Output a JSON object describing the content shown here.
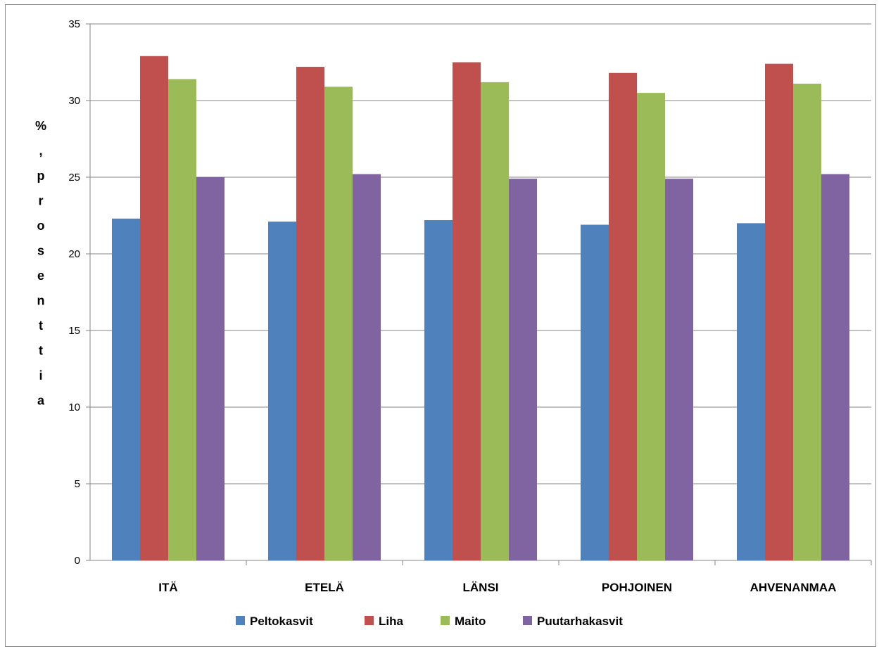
{
  "chart_data": {
    "type": "bar",
    "categories": [
      "ITÄ",
      "ETELÄ",
      "LÄNSI",
      "POHJOINEN",
      "AHVENANMAA"
    ],
    "series": [
      {
        "name": "Peltokasvit",
        "color": "#4f81bd",
        "values": [
          22.3,
          22.1,
          22.2,
          21.9,
          22.0
        ]
      },
      {
        "name": "Liha",
        "color": "#c0504d",
        "values": [
          32.9,
          32.2,
          32.5,
          31.8,
          32.4
        ]
      },
      {
        "name": "Maito",
        "color": "#9bbb59",
        "values": [
          31.4,
          30.9,
          31.2,
          30.5,
          31.1
        ]
      },
      {
        "name": "Puutarhakasvit",
        "color": "#8064a2",
        "values": [
          25.0,
          25.2,
          24.9,
          24.9,
          25.2
        ]
      }
    ],
    "ylabel": "%, prosenttia",
    "ylim": [
      0,
      35
    ],
    "yticks": [
      0,
      5,
      10,
      15,
      20,
      25,
      30,
      35
    ],
    "grid": true,
    "legend": "bottom"
  }
}
